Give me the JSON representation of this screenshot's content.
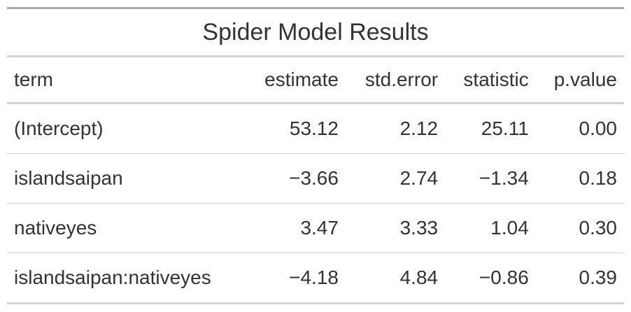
{
  "table": {
    "title": "Spider Model Results",
    "columns": [
      "term",
      "estimate",
      "std.error",
      "statistic",
      "p.value"
    ],
    "rows": [
      [
        "(Intercept)",
        "53.12",
        "2.12",
        "25.11",
        "0.00"
      ],
      [
        "islandsaipan",
        "−3.66",
        "2.74",
        "−1.34",
        "0.18"
      ],
      [
        "nativeyes",
        "3.47",
        "3.33",
        "1.04",
        "0.30"
      ],
      [
        "islandsaipan:nativeyes",
        "−4.18",
        "4.84",
        "−0.86",
        "0.39"
      ]
    ]
  }
}
